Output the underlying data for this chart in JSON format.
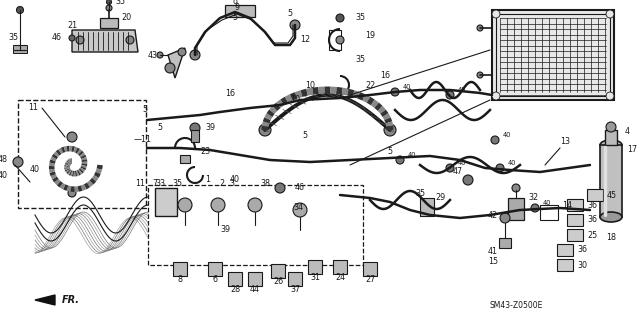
{
  "bg": "#d8d8d8",
  "lc": "#1a1a1a",
  "fig_w": 6.4,
  "fig_h": 3.19,
  "dpi": 100,
  "diagram_ref": "SM43-Z0500E"
}
